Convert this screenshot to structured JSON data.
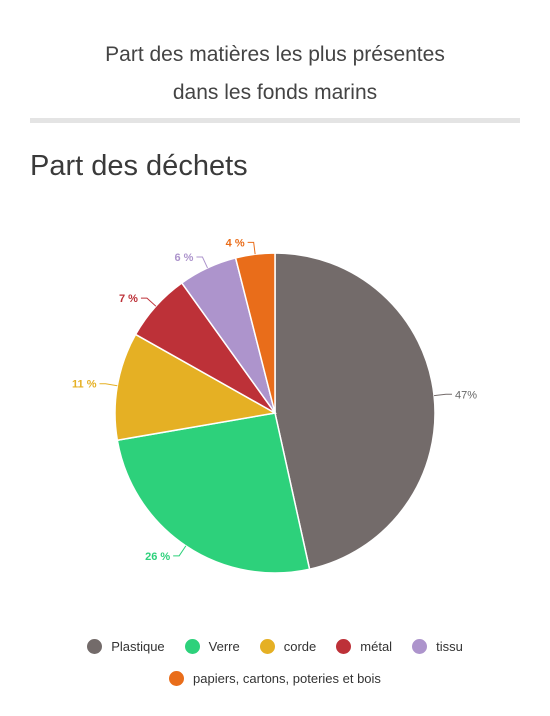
{
  "page": {
    "title_line1": "Part des matières les plus présentes",
    "title_line2": "dans les fonds marins"
  },
  "chart_data": {
    "type": "pie",
    "title": "Part des déchets",
    "slices": [
      {
        "name": "Plastique",
        "value": 47,
        "label": "47%",
        "color": "#736b6a"
      },
      {
        "name": "Verre",
        "value": 26,
        "label": "26 %",
        "color": "#2dd17b"
      },
      {
        "name": "corde",
        "value": 11,
        "label": "11 %",
        "color": "#e5b024"
      },
      {
        "name": "métal",
        "value": 7,
        "label": "7 %",
        "color": "#bd3138"
      },
      {
        "name": "tissu",
        "value": 6,
        "label": "6 %",
        "color": "#ad94cc"
      },
      {
        "name": "papiers, cartons, poteries et bois",
        "value": 4,
        "label": "4 %",
        "color": "#e96d1a"
      }
    ],
    "legend_position": "bottom"
  }
}
